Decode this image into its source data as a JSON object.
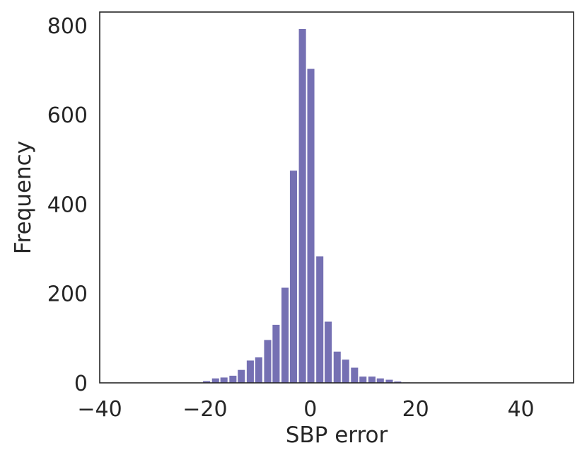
{
  "chart_data": {
    "type": "bar",
    "title": "",
    "xlabel": "SBP error",
    "ylabel": "Frequency",
    "xlim": [
      -40,
      50
    ],
    "ylim": [
      0,
      830
    ],
    "xticks": [
      -40,
      -20,
      0,
      20,
      40
    ],
    "xtick_labels": [
      "−40",
      "−20",
      "0",
      "20",
      "40"
    ],
    "yticks": [
      0,
      200,
      400,
      600,
      800
    ],
    "ytick_labels": [
      "0",
      "200",
      "400",
      "600",
      "800"
    ],
    "grid": false,
    "legend": "none",
    "bin_width": 1.65,
    "bar_color": "#7570b3",
    "bins": [
      {
        "x": -19.7,
        "count": 4
      },
      {
        "x": -18.0,
        "count": 10
      },
      {
        "x": -16.4,
        "count": 12
      },
      {
        "x": -14.7,
        "count": 16
      },
      {
        "x": -13.1,
        "count": 29
      },
      {
        "x": -11.4,
        "count": 50
      },
      {
        "x": -9.8,
        "count": 57
      },
      {
        "x": -8.1,
        "count": 96
      },
      {
        "x": -6.5,
        "count": 130
      },
      {
        "x": -4.8,
        "count": 213
      },
      {
        "x": -3.2,
        "count": 475
      },
      {
        "x": -1.5,
        "count": 792
      },
      {
        "x": 0.1,
        "count": 703
      },
      {
        "x": 1.8,
        "count": 283
      },
      {
        "x": 3.4,
        "count": 137
      },
      {
        "x": 5.1,
        "count": 70
      },
      {
        "x": 6.7,
        "count": 52
      },
      {
        "x": 8.4,
        "count": 34
      },
      {
        "x": 10.0,
        "count": 14
      },
      {
        "x": 11.7,
        "count": 14
      },
      {
        "x": 13.3,
        "count": 10
      },
      {
        "x": 15.0,
        "count": 7
      },
      {
        "x": 16.6,
        "count": 3
      },
      {
        "x": 18.3,
        "count": 1
      }
    ]
  }
}
